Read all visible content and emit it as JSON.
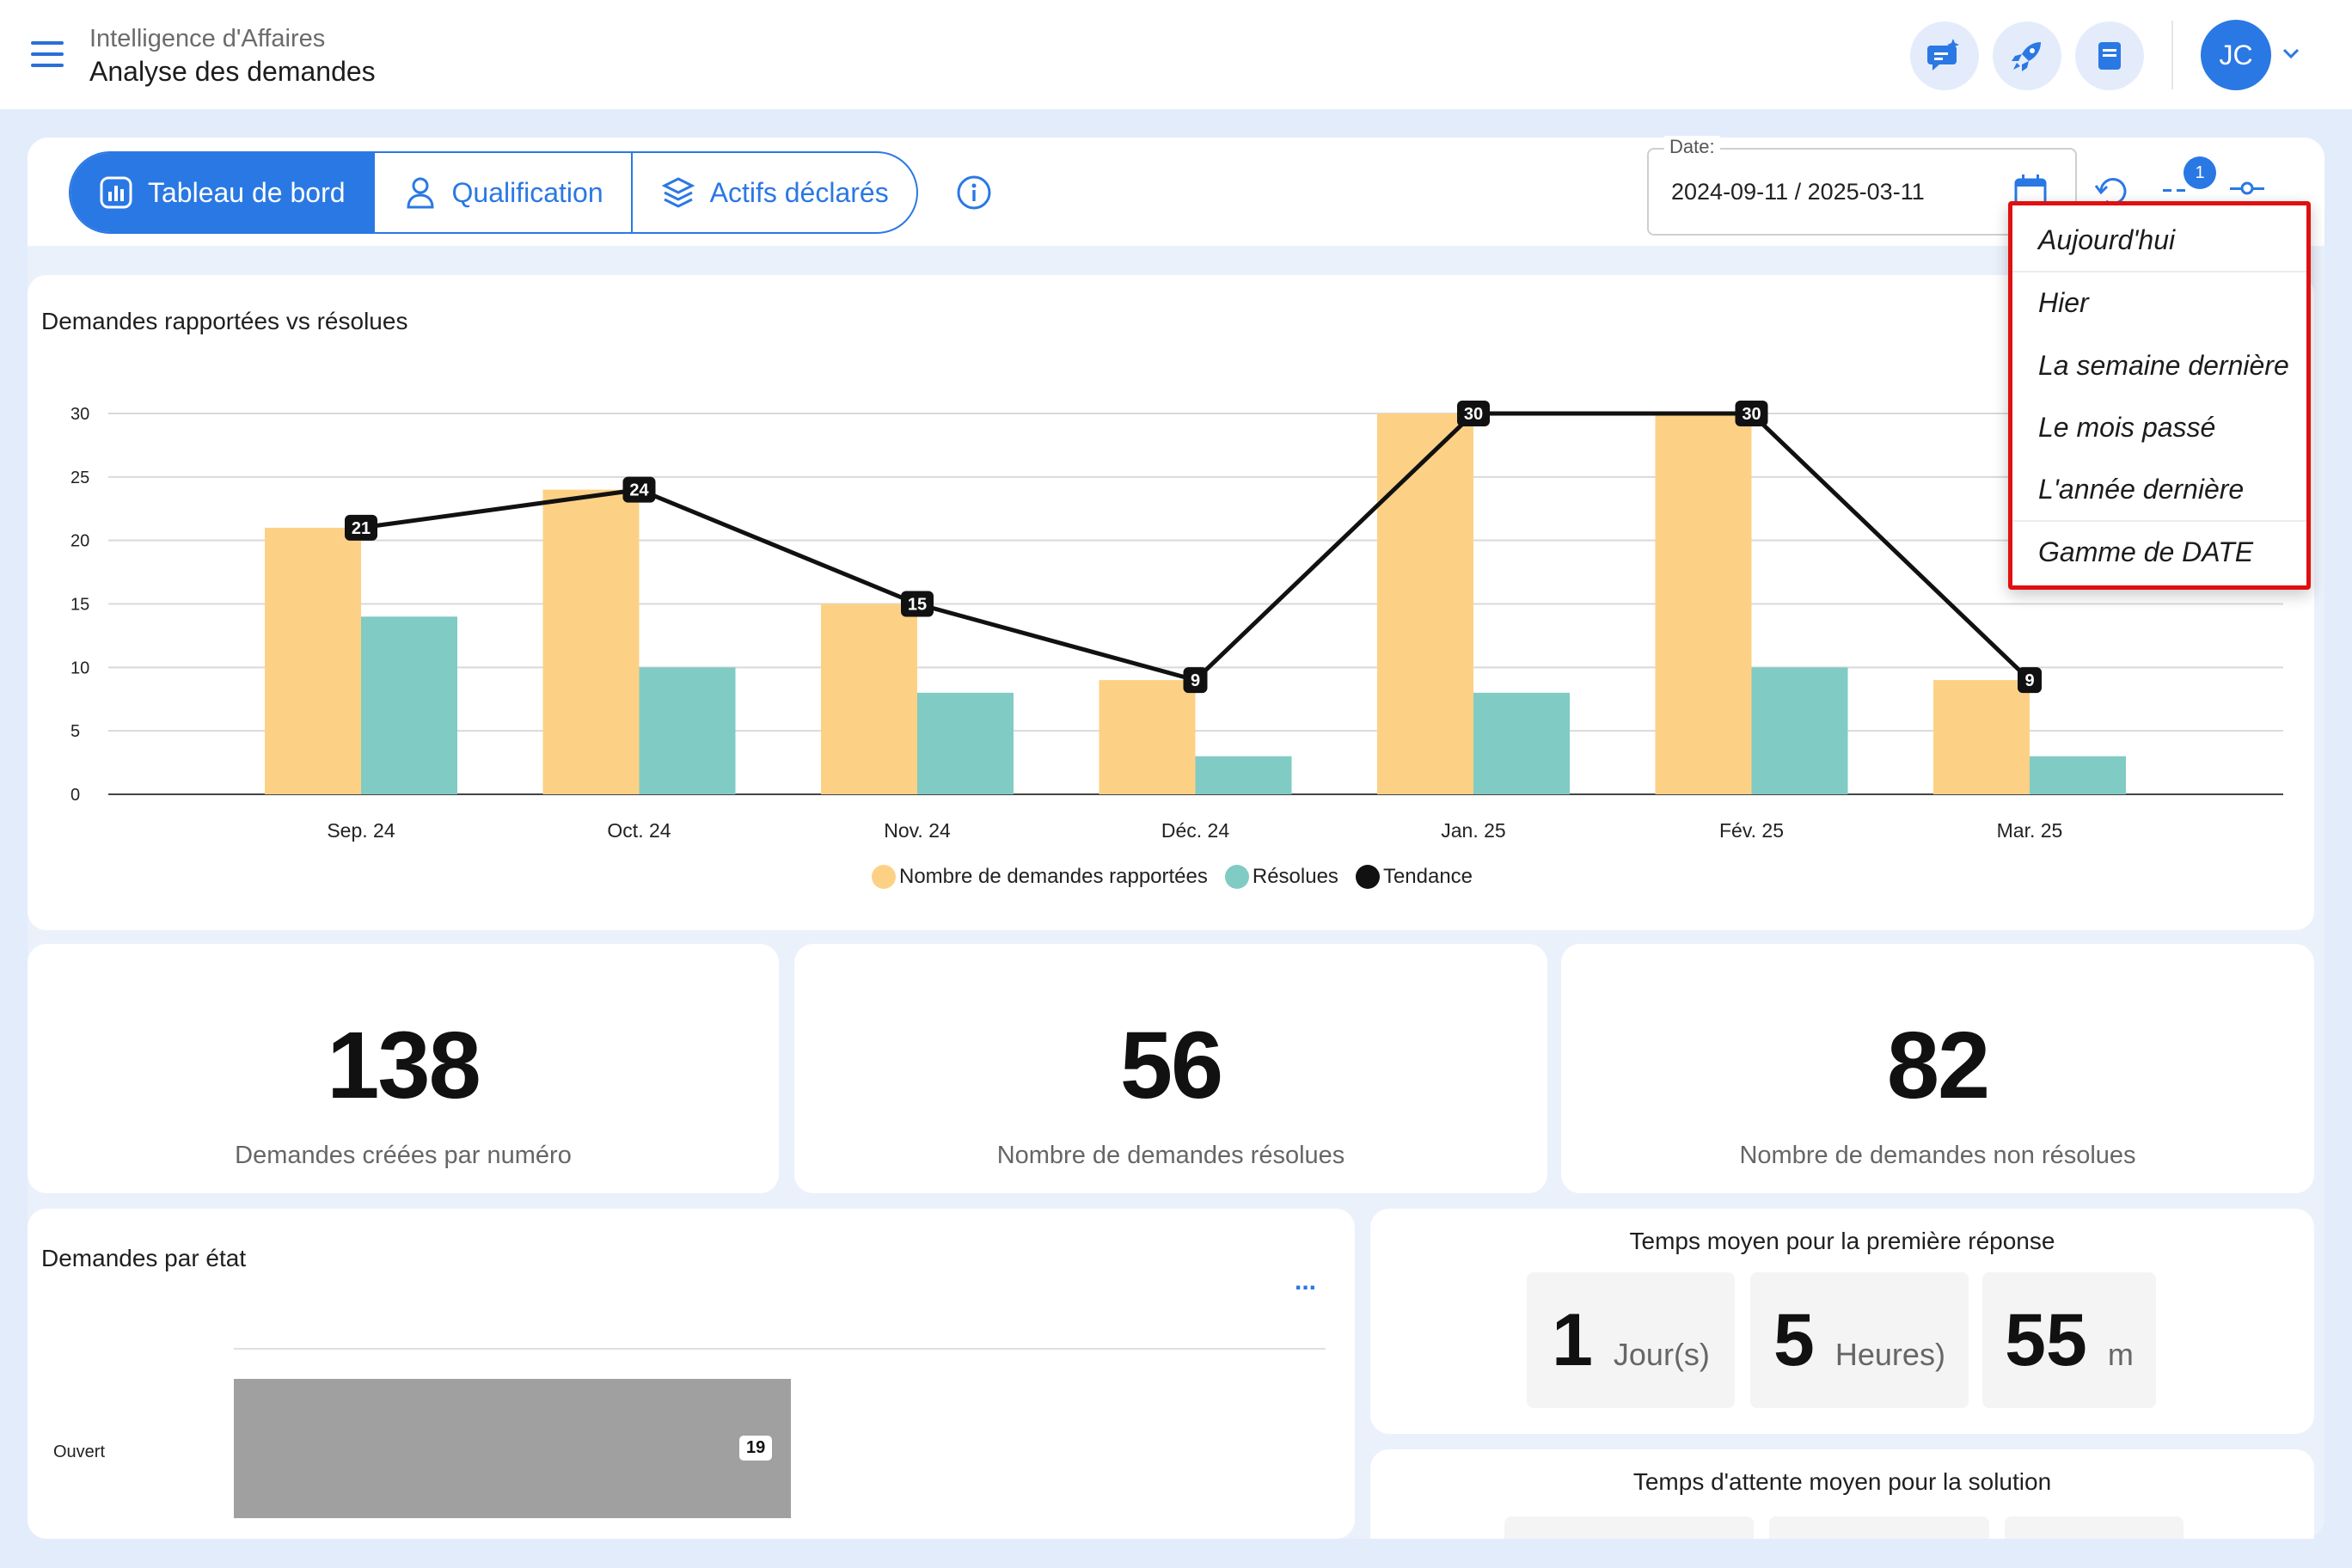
{
  "header": {
    "subtitle": "Intelligence d'Affaires",
    "title": "Analyse des demandes",
    "avatar_initials": "JC"
  },
  "tabs": [
    {
      "label": "Tableau de bord",
      "icon": "chart-icon",
      "active": true
    },
    {
      "label": "Qualification",
      "icon": "user-icon",
      "active": false
    },
    {
      "label": "Actifs déclarés",
      "icon": "layers-icon",
      "active": false
    }
  ],
  "date_filter": {
    "label": "Date:",
    "value": "2024-09-11 / 2025-03-11",
    "filter_badge": "1"
  },
  "date_menu": {
    "items": [
      "Aujourd'hui",
      "Hier",
      "La semaine dernière",
      "Le mois passé",
      "L'année dernière",
      "Gamme de DATE"
    ]
  },
  "main_chart": {
    "title": "Demandes rapportées vs résolues",
    "legend": [
      "Nombre de demandes rapportées",
      "Résolues",
      "Tendance"
    ]
  },
  "chart_data": {
    "type": "bar",
    "categories": [
      "Sep. 24",
      "Oct. 24",
      "Nov. 24",
      "Déc. 24",
      "Jan. 25",
      "Fév. 25",
      "Mar. 25"
    ],
    "series": [
      {
        "name": "Nombre de demandes rapportées",
        "type": "bar",
        "color": "#fdd185",
        "values": [
          21,
          24,
          15,
          9,
          30,
          30,
          9
        ]
      },
      {
        "name": "Résolues",
        "type": "bar",
        "color": "#80cbc4",
        "values": [
          14,
          10,
          8,
          3,
          8,
          10,
          3
        ]
      },
      {
        "name": "Tendance",
        "type": "line",
        "color": "#111111",
        "values": [
          21,
          24,
          15,
          9,
          30,
          30,
          9
        ]
      }
    ],
    "yticks": [
      "0",
      "5",
      "10",
      "15",
      "20",
      "25",
      "30"
    ],
    "ylim": [
      0,
      30
    ],
    "grid": true,
    "legend_position": "bottom"
  },
  "kpis": [
    {
      "value": "138",
      "label": "Demandes créées par numéro"
    },
    {
      "value": "56",
      "label": "Nombre de demandes résolues"
    },
    {
      "value": "82",
      "label": "Nombre de demandes non résolues"
    }
  ],
  "state_chart": {
    "title": "Demandes par état",
    "more": "...",
    "bars": [
      {
        "label": "Ouvert",
        "value": 19,
        "display": "19",
        "fraction": 0.51
      }
    ]
  },
  "first_response": {
    "title": "Temps moyen pour la première réponse",
    "days": {
      "value": "1",
      "unit": "Jour(s)"
    },
    "hours": {
      "value": "5",
      "unit": "Heures)"
    },
    "minutes": {
      "value": "55",
      "unit": "m"
    }
  },
  "solution_wait": {
    "title": "Temps d'attente moyen pour la solution"
  }
}
